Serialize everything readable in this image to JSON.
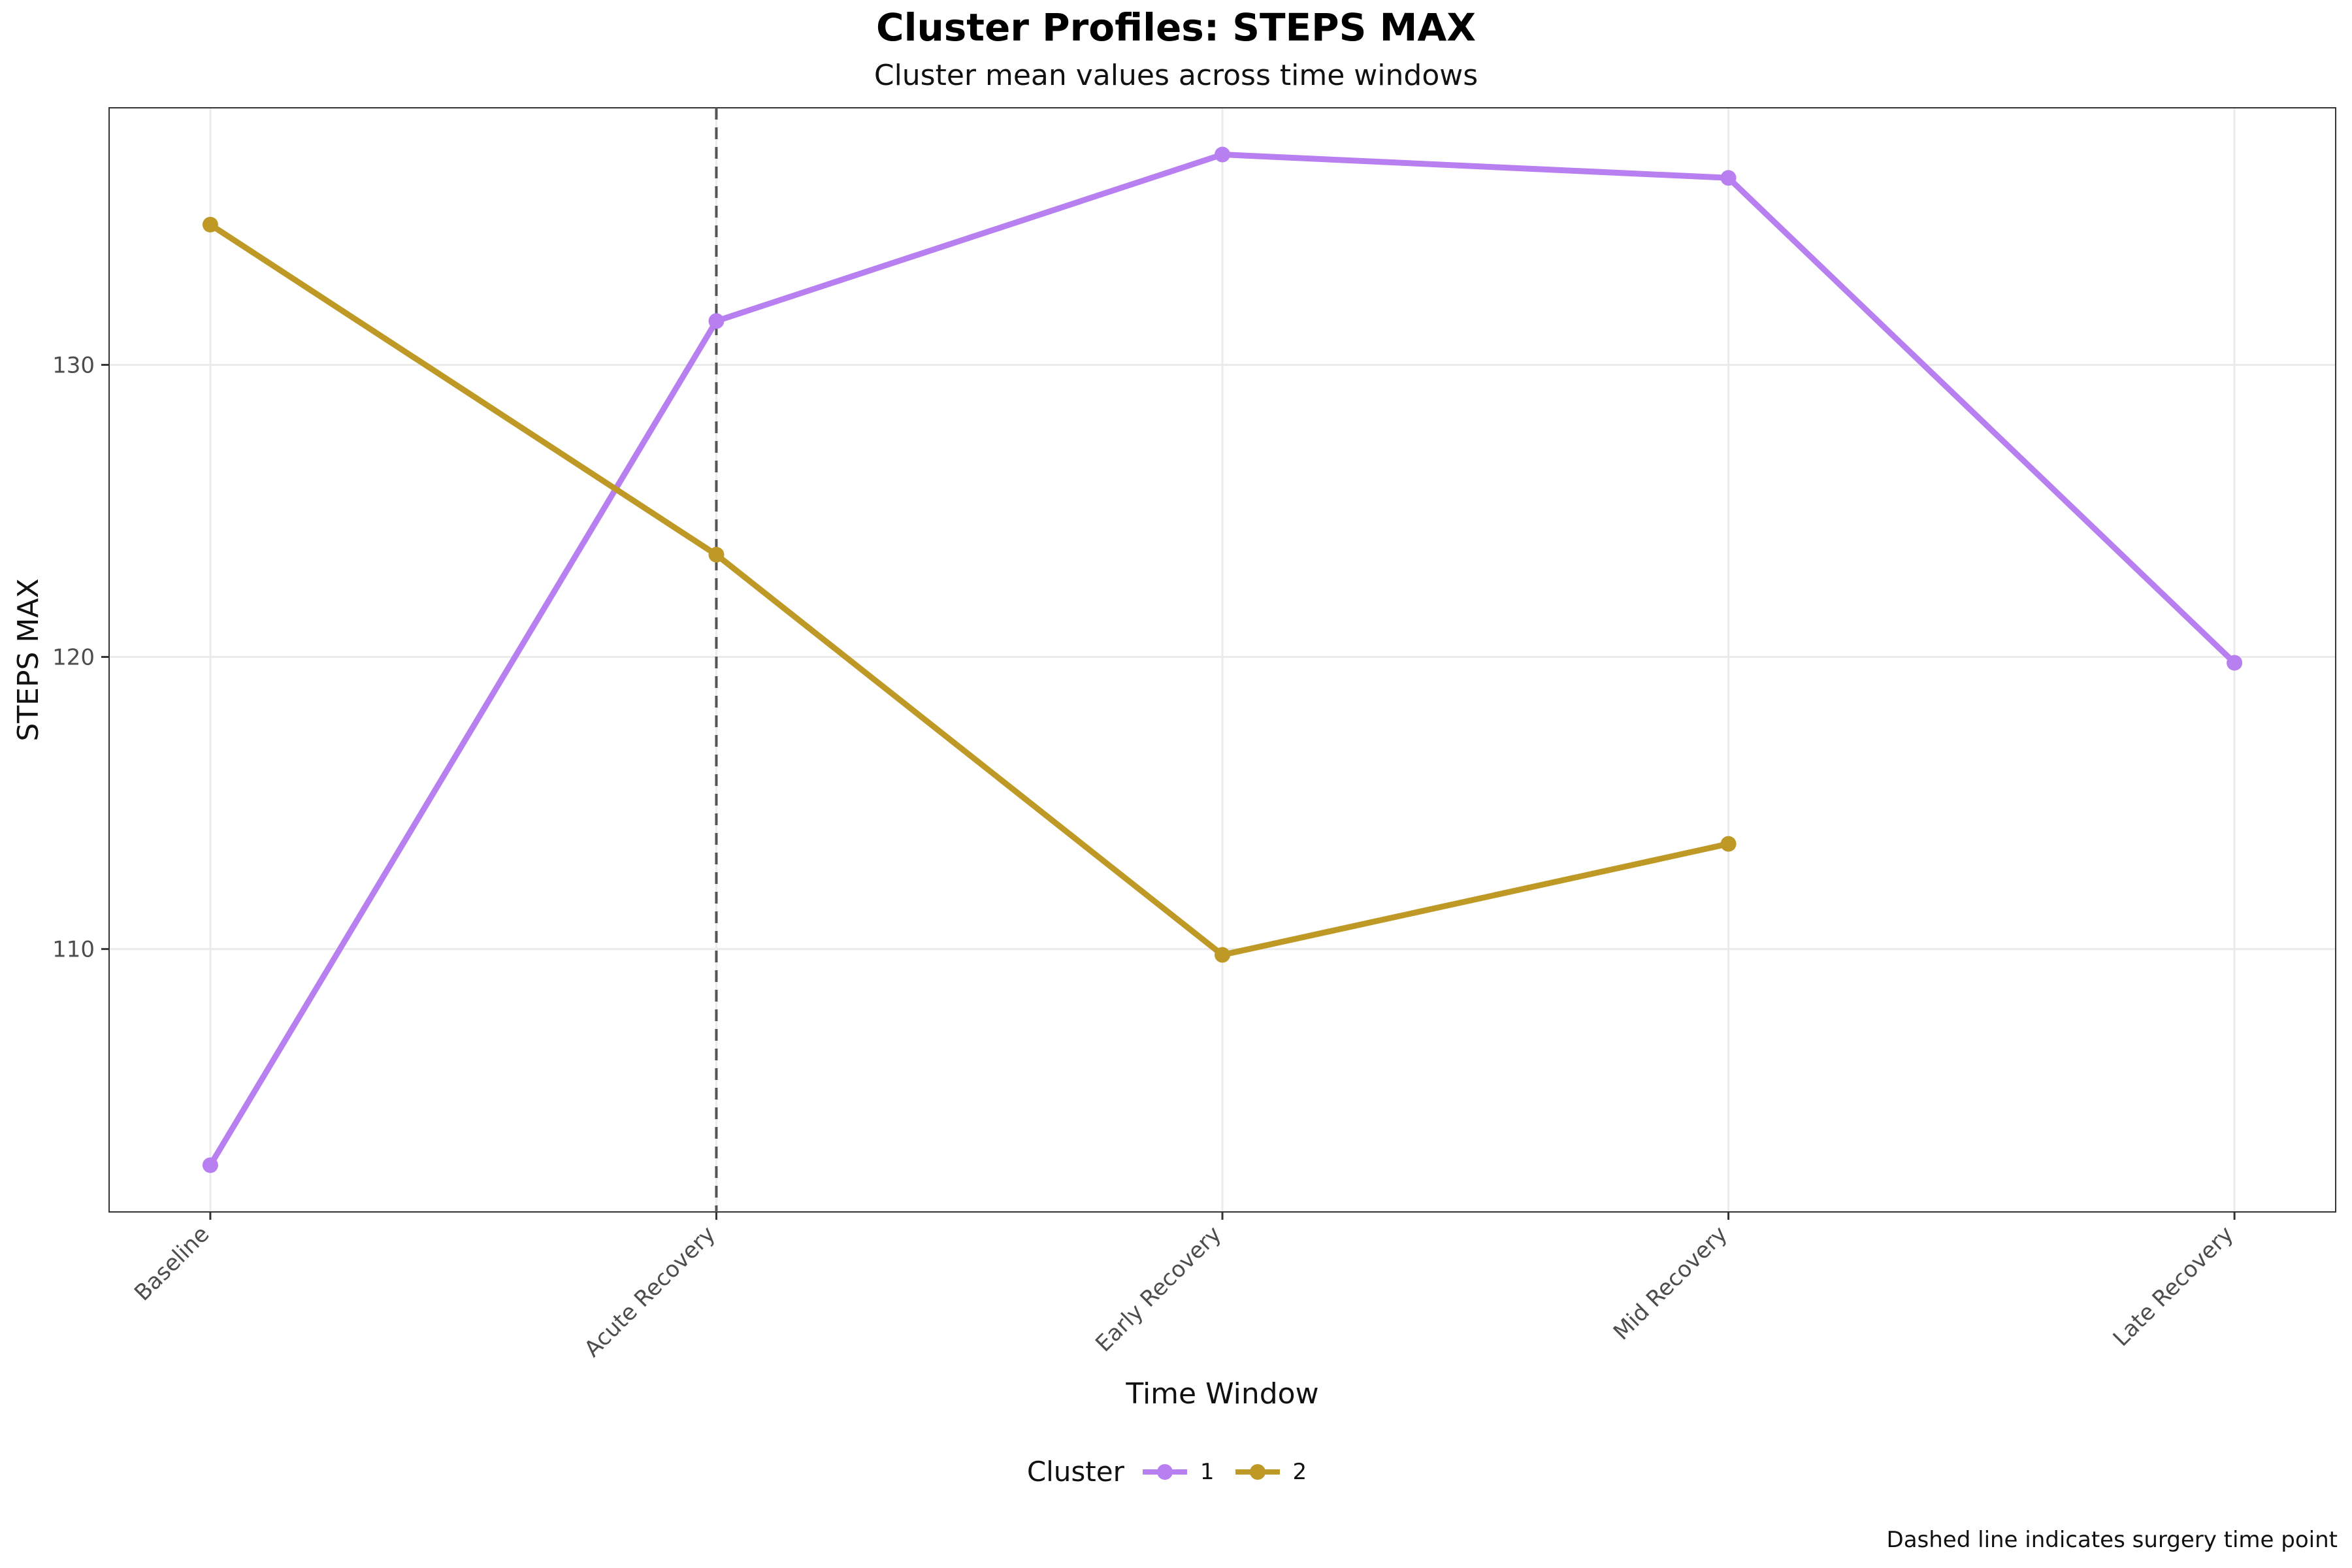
{
  "chart_data": {
    "type": "line",
    "title": "Cluster Profiles: STEPS MAX",
    "subtitle": "Cluster mean values across time windows",
    "xlabel": "Time Window",
    "ylabel": "STEPS MAX",
    "categories": [
      "Baseline",
      "Acute Recovery",
      "Early Recovery",
      "Mid Recovery",
      "Late Recovery"
    ],
    "ylim": [
      101,
      138.8
    ],
    "yticks": [
      110,
      120,
      130
    ],
    "grid": true,
    "series": [
      {
        "name": "1",
        "color": "#b77ff0",
        "values": [
          102.6,
          131.5,
          137.2,
          136.4,
          119.8
        ]
      },
      {
        "name": "2",
        "color": "#bf9926",
        "values": [
          134.8,
          123.5,
          109.8,
          113.6,
          null
        ]
      }
    ],
    "reference_line": {
      "category": "Acute Recovery",
      "style": "dashed",
      "color": "#555555"
    },
    "legend": {
      "title": "Cluster",
      "position": "bottom"
    },
    "caption": "Dashed line indicates surgery time point"
  }
}
